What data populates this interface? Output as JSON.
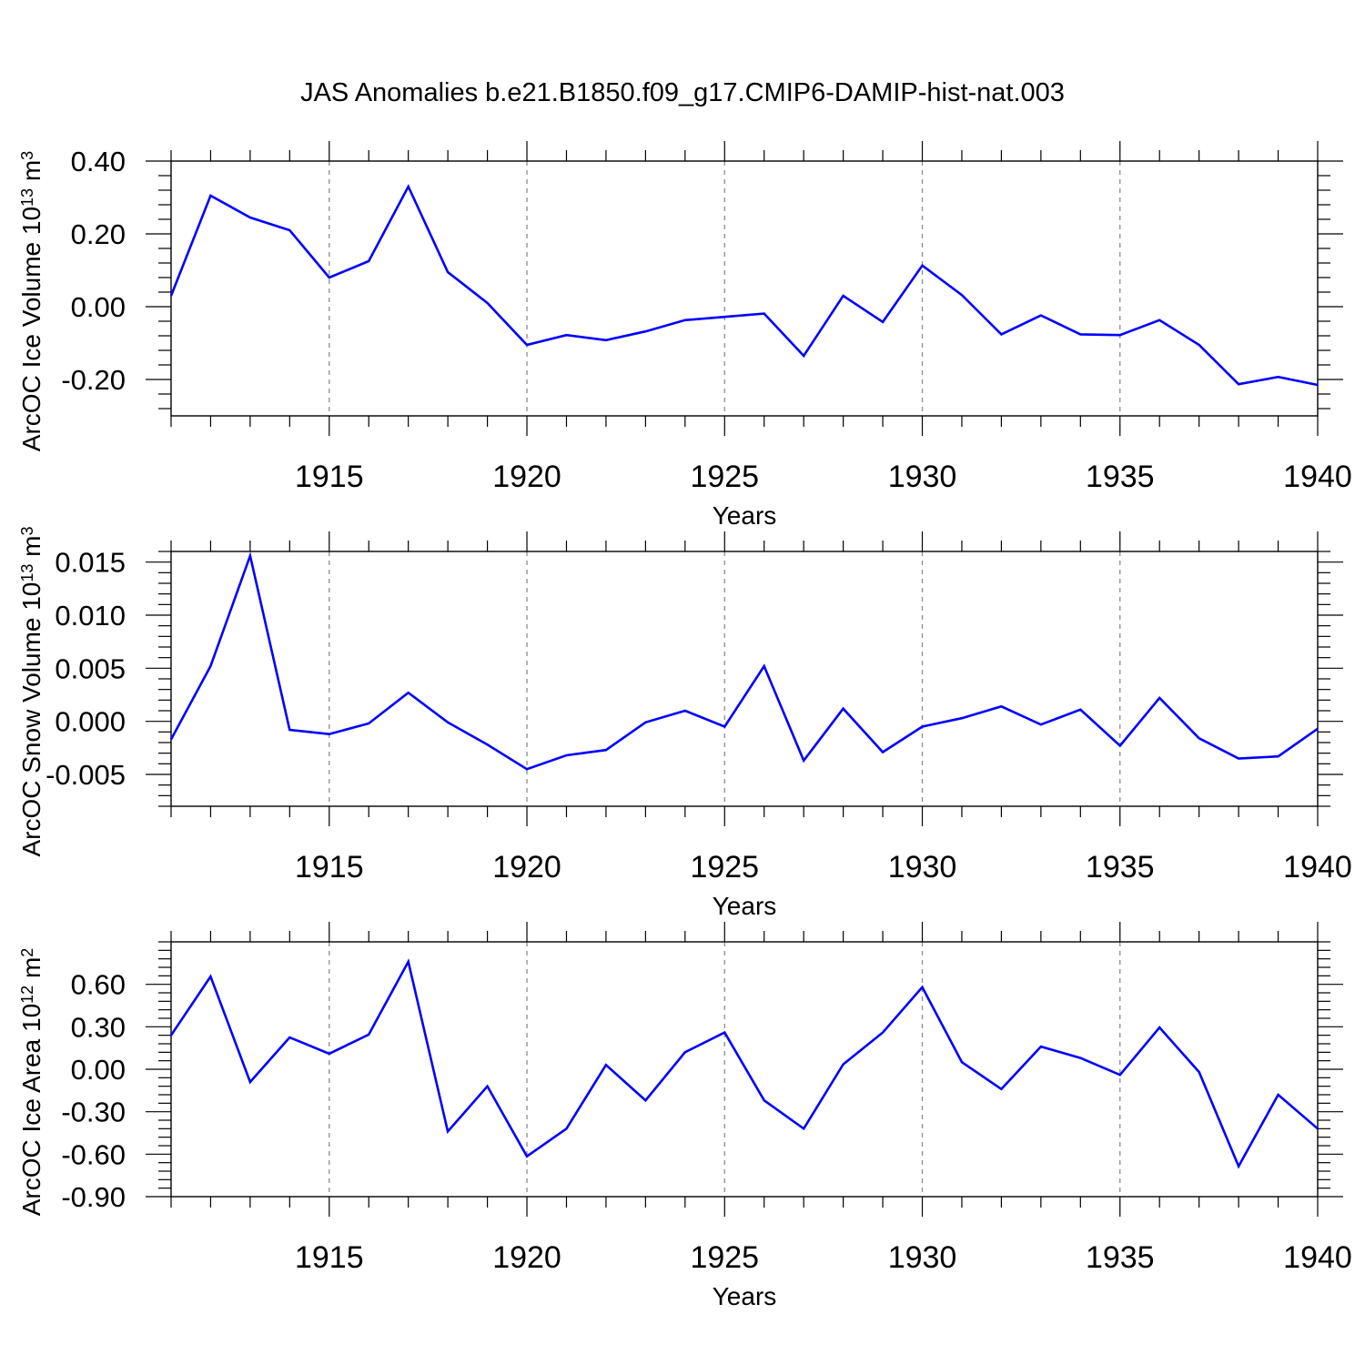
{
  "figure": {
    "title": "JAS Anomalies b.e21.B1850.f09_g17.CMIP6-DAMIP-hist-nat.003"
  },
  "chart_data": [
    {
      "type": "line",
      "title": "JAS Anomalies b.e21.B1850.f09_g17.CMIP6-DAMIP-hist-nat.003",
      "xlabel": "Years",
      "ylabel": {
        "main": "ArcOC Ice Volume 10",
        "sup1": "13",
        "mid": " m",
        "sup2": "3"
      },
      "x": [
        1911,
        1912,
        1913,
        1914,
        1915,
        1916,
        1917,
        1918,
        1919,
        1920,
        1921,
        1922,
        1923,
        1924,
        1925,
        1926,
        1927,
        1928,
        1929,
        1930,
        1931,
        1932,
        1933,
        1934,
        1935,
        1936,
        1937,
        1938,
        1939,
        1940
      ],
      "series": [
        {
          "color": "#0000ff",
          "values": [
            0.03,
            0.305,
            0.245,
            0.21,
            0.08,
            0.125,
            0.33,
            0.095,
            0.01,
            -0.105,
            -0.078,
            -0.092,
            -0.068,
            -0.037,
            -0.028,
            -0.019,
            -0.135,
            0.03,
            -0.042,
            0.113,
            0.032,
            -0.076,
            -0.024,
            -0.076,
            -0.078,
            -0.037,
            -0.105,
            -0.213,
            -0.193,
            -0.215
          ]
        }
      ],
      "xlim": [
        1911,
        1940
      ],
      "ylim": [
        -0.3,
        0.4
      ],
      "xticks": [
        "1915",
        "1920",
        "1925",
        "1930",
        "1935",
        "1940"
      ],
      "yticks": [
        "0.40",
        "0.20",
        "0.00",
        "-0.20"
      ],
      "ytick_values": [
        0.4,
        0.2,
        0.0,
        -0.2
      ],
      "grid": "vertical dashed at major x ticks"
    },
    {
      "type": "line",
      "xlabel": "Years",
      "ylabel": {
        "main": "ArcOC Snow Volume 10",
        "sup1": "13",
        "mid": " m",
        "sup2": "3"
      },
      "x": [
        1911,
        1912,
        1913,
        1914,
        1915,
        1916,
        1917,
        1918,
        1919,
        1920,
        1921,
        1922,
        1923,
        1924,
        1925,
        1926,
        1927,
        1928,
        1929,
        1930,
        1931,
        1932,
        1933,
        1934,
        1935,
        1936,
        1937,
        1938,
        1939,
        1940
      ],
      "series": [
        {
          "color": "#0000ff",
          "values": [
            -0.0017,
            0.0052,
            0.0156,
            -0.0008,
            -0.0012,
            -0.0002,
            0.0027,
            -0.0001,
            -0.0022,
            -0.0045,
            -0.0032,
            -0.0027,
            -0.0001,
            0.001,
            -0.0005,
            0.0052,
            -0.0037,
            0.0012,
            -0.0029,
            -0.0005,
            0.0003,
            0.0014,
            -0.0003,
            0.0011,
            -0.0023,
            0.0022,
            -0.0016,
            -0.0035,
            -0.0033,
            -0.0007
          ]
        }
      ],
      "xlim": [
        1911,
        1940
      ],
      "ylim": [
        -0.008,
        0.016
      ],
      "xticks": [
        "1915",
        "1920",
        "1925",
        "1930",
        "1935",
        "1940"
      ],
      "yticks": [
        "0.015",
        "0.010",
        "0.005",
        "0.000",
        "-0.005"
      ],
      "ytick_values": [
        0.015,
        0.01,
        0.005,
        0.0,
        -0.005
      ],
      "grid": "vertical dashed at major x ticks"
    },
    {
      "type": "line",
      "xlabel": "Years",
      "ylabel": {
        "main": "ArcOC Ice Area 10",
        "sup1": "12",
        "mid": " m",
        "sup2": "2"
      },
      "x": [
        1911,
        1912,
        1913,
        1914,
        1915,
        1916,
        1917,
        1918,
        1919,
        1920,
        1921,
        1922,
        1923,
        1924,
        1925,
        1926,
        1927,
        1928,
        1929,
        1930,
        1931,
        1932,
        1933,
        1934,
        1935,
        1936,
        1937,
        1938,
        1939,
        1940
      ],
      "series": [
        {
          "color": "#0000ff",
          "values": [
            0.24,
            0.655,
            -0.09,
            0.225,
            0.11,
            0.245,
            0.76,
            -0.44,
            -0.12,
            -0.615,
            -0.42,
            0.03,
            -0.22,
            0.12,
            0.26,
            -0.22,
            -0.42,
            0.035,
            0.26,
            0.58,
            0.05,
            -0.14,
            0.16,
            0.08,
            -0.04,
            0.295,
            -0.02,
            -0.685,
            -0.18,
            -0.42
          ]
        }
      ],
      "xlim": [
        1911,
        1940
      ],
      "ylim": [
        -0.9,
        0.9
      ],
      "xticks": [
        "1915",
        "1920",
        "1925",
        "1930",
        "1935",
        "1940"
      ],
      "yticks": [
        "0.60",
        "0.30",
        "0.00",
        "-0.30",
        "-0.60",
        "-0.90"
      ],
      "ytick_values": [
        0.6,
        0.3,
        0.0,
        -0.3,
        -0.6,
        -0.9
      ],
      "grid": "vertical dashed at major x ticks"
    }
  ]
}
